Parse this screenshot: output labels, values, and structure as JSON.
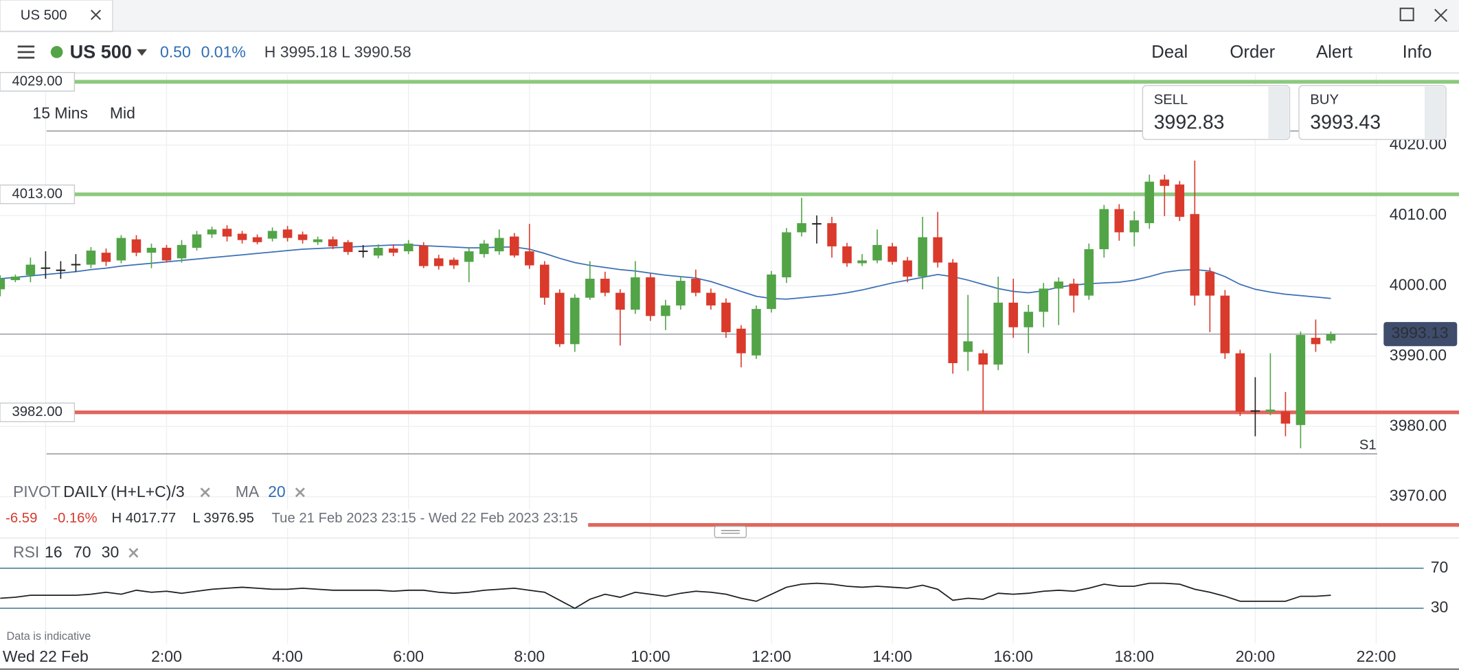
{
  "ui": {
    "tab": "US 500",
    "instrument": "US 500",
    "change": "0.50",
    "change_pct": "0.01%",
    "high": "H 3995.18",
    "low": "L 3990.58",
    "menu": [
      "Deal",
      "Order",
      "Alert",
      "Info"
    ],
    "sell": {
      "label": "SELL",
      "price": "3992.83"
    },
    "buy": {
      "label": "BUY",
      "price": "3993.43"
    },
    "timeframe": "15 Mins",
    "price_type": "Mid",
    "pivot": {
      "label": "PIVOT",
      "period": "DAILY",
      "formula": "(H+L+C)/3"
    },
    "ma": {
      "label": "MA",
      "period": "20"
    },
    "info": {
      "change": "-6.59",
      "change_pct": "-0.16%",
      "high": "H 4017.77",
      "low": "L 3976.95",
      "range": "Tue 21 Feb 2023 23:15 - Wed 22 Feb 2023 23:15"
    },
    "rsi": {
      "label": "RSI",
      "period": "16",
      "upper": "70",
      "lower": "30"
    },
    "disclaimer": "Data is indicative"
  },
  "chart_data": [
    {
      "type": "candlestick",
      "up_color": "#52a447",
      "down_color": "#d93a2b",
      "x": [
        -0.75,
        -0.5,
        -0.25,
        0,
        0.25,
        0.5,
        0.75,
        1,
        1.25,
        1.5,
        1.75,
        2,
        2.25,
        2.5,
        2.75,
        3,
        3.25,
        3.5,
        3.75,
        4,
        4.25,
        4.5,
        4.75,
        5,
        5.25,
        5.5,
        5.75,
        6,
        6.25,
        6.5,
        6.75,
        7,
        7.25,
        7.5,
        7.75,
        8,
        8.25,
        8.5,
        8.75,
        9,
        9.25,
        9.5,
        9.75,
        10,
        10.25,
        10.5,
        10.75,
        11,
        11.25,
        11.5,
        11.75,
        12,
        12.25,
        12.5,
        12.75,
        13,
        13.25,
        13.5,
        13.75,
        14,
        14.25,
        14.5,
        14.75,
        15,
        15.25,
        15.5,
        15.75,
        16,
        16.25,
        16.5,
        16.75,
        17,
        17.25,
        17.5,
        17.75,
        18,
        18.25,
        18.5,
        18.75,
        19,
        19.25,
        19.5,
        19.75,
        20,
        20.25,
        20.5,
        20.75,
        21,
        21.25
      ],
      "open": [
        3999.5,
        4000.8,
        4001.5,
        4002.5,
        4002.3,
        4003,
        4003,
        4004.7,
        4003.6,
        4006.6,
        4004.7,
        4005.4,
        4003.9,
        4005.4,
        4007.3,
        4008.1,
        4007.4,
        4006.9,
        4006.7,
        4008,
        4007.3,
        4006.2,
        4006.6,
        4006.2,
        4005,
        4004.3,
        4005.3,
        4004.9,
        4005.7,
        4003.9,
        4003.7,
        4003.4,
        4004.5,
        4004.9,
        4007,
        4004.9,
        4003,
        3999,
        3991.7,
        3998.3,
        4001,
        3999,
        3996.6,
        4001.2,
        3995.7,
        3997.2,
        4001,
        3999,
        3997.6,
        3993.9,
        3990.1,
        3996.7,
        4001.2,
        4007.6,
        4008.8,
        4008.9,
        4005.6,
        4003.2,
        4003.6,
        4005.6,
        4003.6,
        4001.3,
        4006.9,
        4003.3,
        3990.6,
        3990.4,
        3988.8,
        3997.6,
        3994.1,
        3996.3,
        3999.6,
        4000.3,
        3998.6,
        4005.2,
        4010.9,
        4007.6,
        4008.9,
        4015.1,
        4014.4,
        4010.2,
        4002,
        3998.6,
        3990.4,
        3982.3,
        3982.1,
        3982.1,
        3980.2,
        3992.6,
        3992.2
      ],
      "high": [
        4001.5,
        4001.6,
        4004,
        4004.9,
        4003.5,
        4004.5,
        4005.5,
        4005.3,
        4007.2,
        4007.2,
        4006,
        4005.8,
        4006.5,
        4007.8,
        4008.4,
        4008.6,
        4007.8,
        4007.3,
        4008.3,
        4008.5,
        4007.7,
        4007,
        4007,
        4006.5,
        4005.8,
        4005.9,
        4005.9,
        4006.5,
        4006.2,
        4004.4,
        4004,
        4005.4,
        4006.5,
        4008,
        4007.5,
        4008.8,
        4003.5,
        3999.5,
        3998.8,
        4003.5,
        4002,
        3999.5,
        4003.5,
        4001.7,
        3998,
        4001.4,
        4002.3,
        3999.6,
        3998.2,
        3994.4,
        3997.2,
        4002.1,
        4008.2,
        4012.5,
        4010,
        4009.8,
        4006.1,
        4004.5,
        4008,
        4006.1,
        4004.1,
        4009.8,
        4010.5,
        4003.8,
        3998.7,
        3990.9,
        4001.3,
        4001,
        3997.3,
        4000.4,
        4001.2,
        4001,
        4006,
        4011.5,
        4011.6,
        4010.6,
        4015.8,
        4015.8,
        4014.9,
        4017.8,
        4002.6,
        3999.4,
        3990.9,
        3987,
        3990.4,
        3984.9,
        3993.5,
        3995.2,
        3993.5
      ],
      "low": [
        3998.5,
        4000.5,
        4000.5,
        4001,
        4001,
        4002,
        4002.5,
        4002.8,
        4003.2,
        4004.2,
        4002.5,
        4003.3,
        4003.3,
        4005,
        4006.8,
        4006.3,
        4006,
        4005.9,
        4006.3,
        4006.3,
        4006,
        4005.8,
        4005.2,
        4004.4,
        4004,
        4003.9,
        4004.2,
        4004.5,
        4002.5,
        4002.3,
        4002.4,
        4000.5,
        4004,
        4004.4,
        4004,
        4002.4,
        3997.3,
        3991.3,
        3990.6,
        3998,
        3998.5,
        3991.5,
        3996,
        3995,
        3993.7,
        3996.6,
        3998.5,
        3996.6,
        3992.6,
        3988.4,
        3989.6,
        3996.2,
        4000.4,
        4007,
        4006,
        4004,
        4002.7,
        4002.8,
        4003.2,
        4003,
        4000.5,
        3999.5,
        4002.6,
        3987.5,
        3987.9,
        3982.1,
        3988,
        3992.6,
        3990.4,
        3994.1,
        3994.4,
        3996.2,
        3998,
        4004,
        4006.4,
        4005.6,
        4008.1,
        4009.9,
        4009.2,
        3997.2,
        3993.4,
        3989.6,
        3981.5,
        3978.6,
        3981.6,
        3978.6,
        3976.9,
        3990.6,
        3991.8
      ],
      "close": [
        4001,
        4001.3,
        4003,
        4002.6,
        4002.2,
        4003.1,
        4005,
        4003.4,
        4006.8,
        4004.7,
        4005.4,
        4003.6,
        4005.8,
        4007.3,
        4008,
        4007,
        4006.5,
        4006.2,
        4007.8,
        4006.8,
        4006.5,
        4006.6,
        4005.6,
        4004.8,
        4004.9,
        4005.4,
        4004.7,
        4006,
        4002.8,
        4002.8,
        4002.9,
        4004.9,
        4006,
        4006.8,
        4004.3,
        4002.9,
        3998.3,
        3991.7,
        3998.3,
        4001,
        3999,
        3996.6,
        4001.2,
        3995.7,
        3997.2,
        4000.7,
        3999,
        3997.2,
        3993.4,
        3990.4,
        3996.7,
        4001.6,
        4007.6,
        4008.9,
        4008.9,
        4005.6,
        4003.2,
        4003.6,
        4005.8,
        4003.4,
        4001.3,
        4006.9,
        4003.3,
        3989,
        3992.1,
        3988.8,
        3997.6,
        3994.1,
        3996.3,
        3999.6,
        4000.6,
        3998.6,
        4005.2,
        4010.9,
        4007.6,
        4009.3,
        4014.8,
        4014.2,
        4009.8,
        3998.6,
        3998.6,
        3990.4,
        3982.1,
        3982.2,
        3982.4,
        3980.4,
        3993,
        3991.7,
        3993.1
      ],
      "ma": {
        "color": "#3b6fb6",
        "values": [
          4001.0,
          4001.2,
          4001.4,
          4001.6,
          4001.8,
          4002.0,
          4002.3,
          4002.5,
          4002.8,
          4003.0,
          4003.2,
          4003.4,
          4003.6,
          4003.8,
          4004.0,
          4004.2,
          4004.4,
          4004.6,
          4004.8,
          4005.0,
          4005.2,
          4005.3,
          4005.4,
          4005.5,
          4005.6,
          4005.7,
          4005.8,
          4005.8,
          4005.7,
          4005.6,
          4005.5,
          4005.4,
          4005.4,
          4005.5,
          4005.5,
          4005.2,
          4004.6,
          4003.9,
          4003.3,
          4002.9,
          4002.6,
          4002.3,
          4002.1,
          4001.8,
          4001.5,
          4001.3,
          4001.1,
          4000.6,
          3999.9,
          3999.2,
          3998.5,
          3998.2,
          3998.1,
          3998.3,
          3998.5,
          3998.7,
          3999.0,
          3999.4,
          3999.9,
          4000.4,
          4000.8,
          4001.2,
          4001.6,
          4001.3,
          4000.8,
          4000.2,
          3999.6,
          3999.2,
          3999.0,
          3999.3,
          3999.8,
          4000.1,
          4000.3,
          4000.4,
          4000.5,
          4000.8,
          4001.3,
          4001.9,
          4002.2,
          4002.3,
          4002.1,
          4001.3,
          4000.2,
          3999.5,
          3999.1,
          3998.8,
          3998.6,
          3998.4,
          3998.2
        ]
      },
      "xlim": [
        -0.754,
        22.015
      ],
      "xticks": [
        {
          "value": 0,
          "label": "Wed 22 Feb"
        },
        {
          "value": 2,
          "label": "2:00"
        },
        {
          "value": 4,
          "label": "4:00"
        },
        {
          "value": 6,
          "label": "6:00"
        },
        {
          "value": 8,
          "label": "8:00"
        },
        {
          "value": 10,
          "label": "10:00"
        },
        {
          "value": 12,
          "label": "12:00"
        },
        {
          "value": 14,
          "label": "14:00"
        },
        {
          "value": 16,
          "label": "16:00"
        },
        {
          "value": 18,
          "label": "18:00"
        },
        {
          "value": 20,
          "label": "20:00"
        },
        {
          "value": 22,
          "label": "22:00"
        }
      ],
      "ylim": [
        3965.8,
        4030.05
      ],
      "yticks": [
        {
          "value": 3970,
          "label": "3970.00"
        },
        {
          "value": 3980,
          "label": "3980.00"
        },
        {
          "value": 3990,
          "label": "3990.00"
        },
        {
          "value": 4000,
          "label": "4000.00"
        },
        {
          "value": 4010,
          "label": "4010.00"
        },
        {
          "value": 4020,
          "label": "4020.00"
        }
      ],
      "grid": true,
      "levels": [
        {
          "value": 4029,
          "label": "4029.00",
          "color": "#8cc97f"
        },
        {
          "value": 4013,
          "label": "4013.00",
          "color": "#8cc97f"
        },
        {
          "value": 3982,
          "label": "3982.00",
          "color": "#e0675e"
        },
        {
          "value": 3966,
          "color": "#e0675e"
        }
      ],
      "pivots": [
        {
          "value": 4022
        },
        {
          "value": 3976.1,
          "label": "S1"
        }
      ],
      "last_price": {
        "value": 3993.13,
        "label": "3993.13"
      }
    },
    {
      "type": "line",
      "color": "#1f1f1f",
      "values": [
        40,
        41,
        43,
        43,
        43,
        43,
        44,
        46,
        44,
        48,
        46,
        47,
        45,
        47,
        49,
        50,
        51,
        50,
        49,
        49,
        50,
        49,
        48,
        48,
        48,
        48,
        47,
        48,
        48,
        46,
        45,
        46,
        48,
        49,
        50,
        48,
        46,
        38,
        30,
        39,
        44,
        41,
        46,
        44,
        42,
        45,
        47,
        46,
        44,
        40,
        37,
        44,
        51,
        54,
        55,
        54,
        52,
        51,
        52,
        51,
        50,
        53,
        49,
        38,
        40,
        39,
        45,
        44,
        45,
        47,
        48,
        47,
        50,
        54,
        52,
        52,
        55,
        55,
        54,
        49,
        46,
        42,
        37,
        37,
        37,
        37,
        42,
        42,
        43
      ],
      "ylim": [
        6,
        89.5
      ],
      "yticks": [
        30,
        70
      ],
      "tick_color": "#2d6a7a"
    }
  ]
}
